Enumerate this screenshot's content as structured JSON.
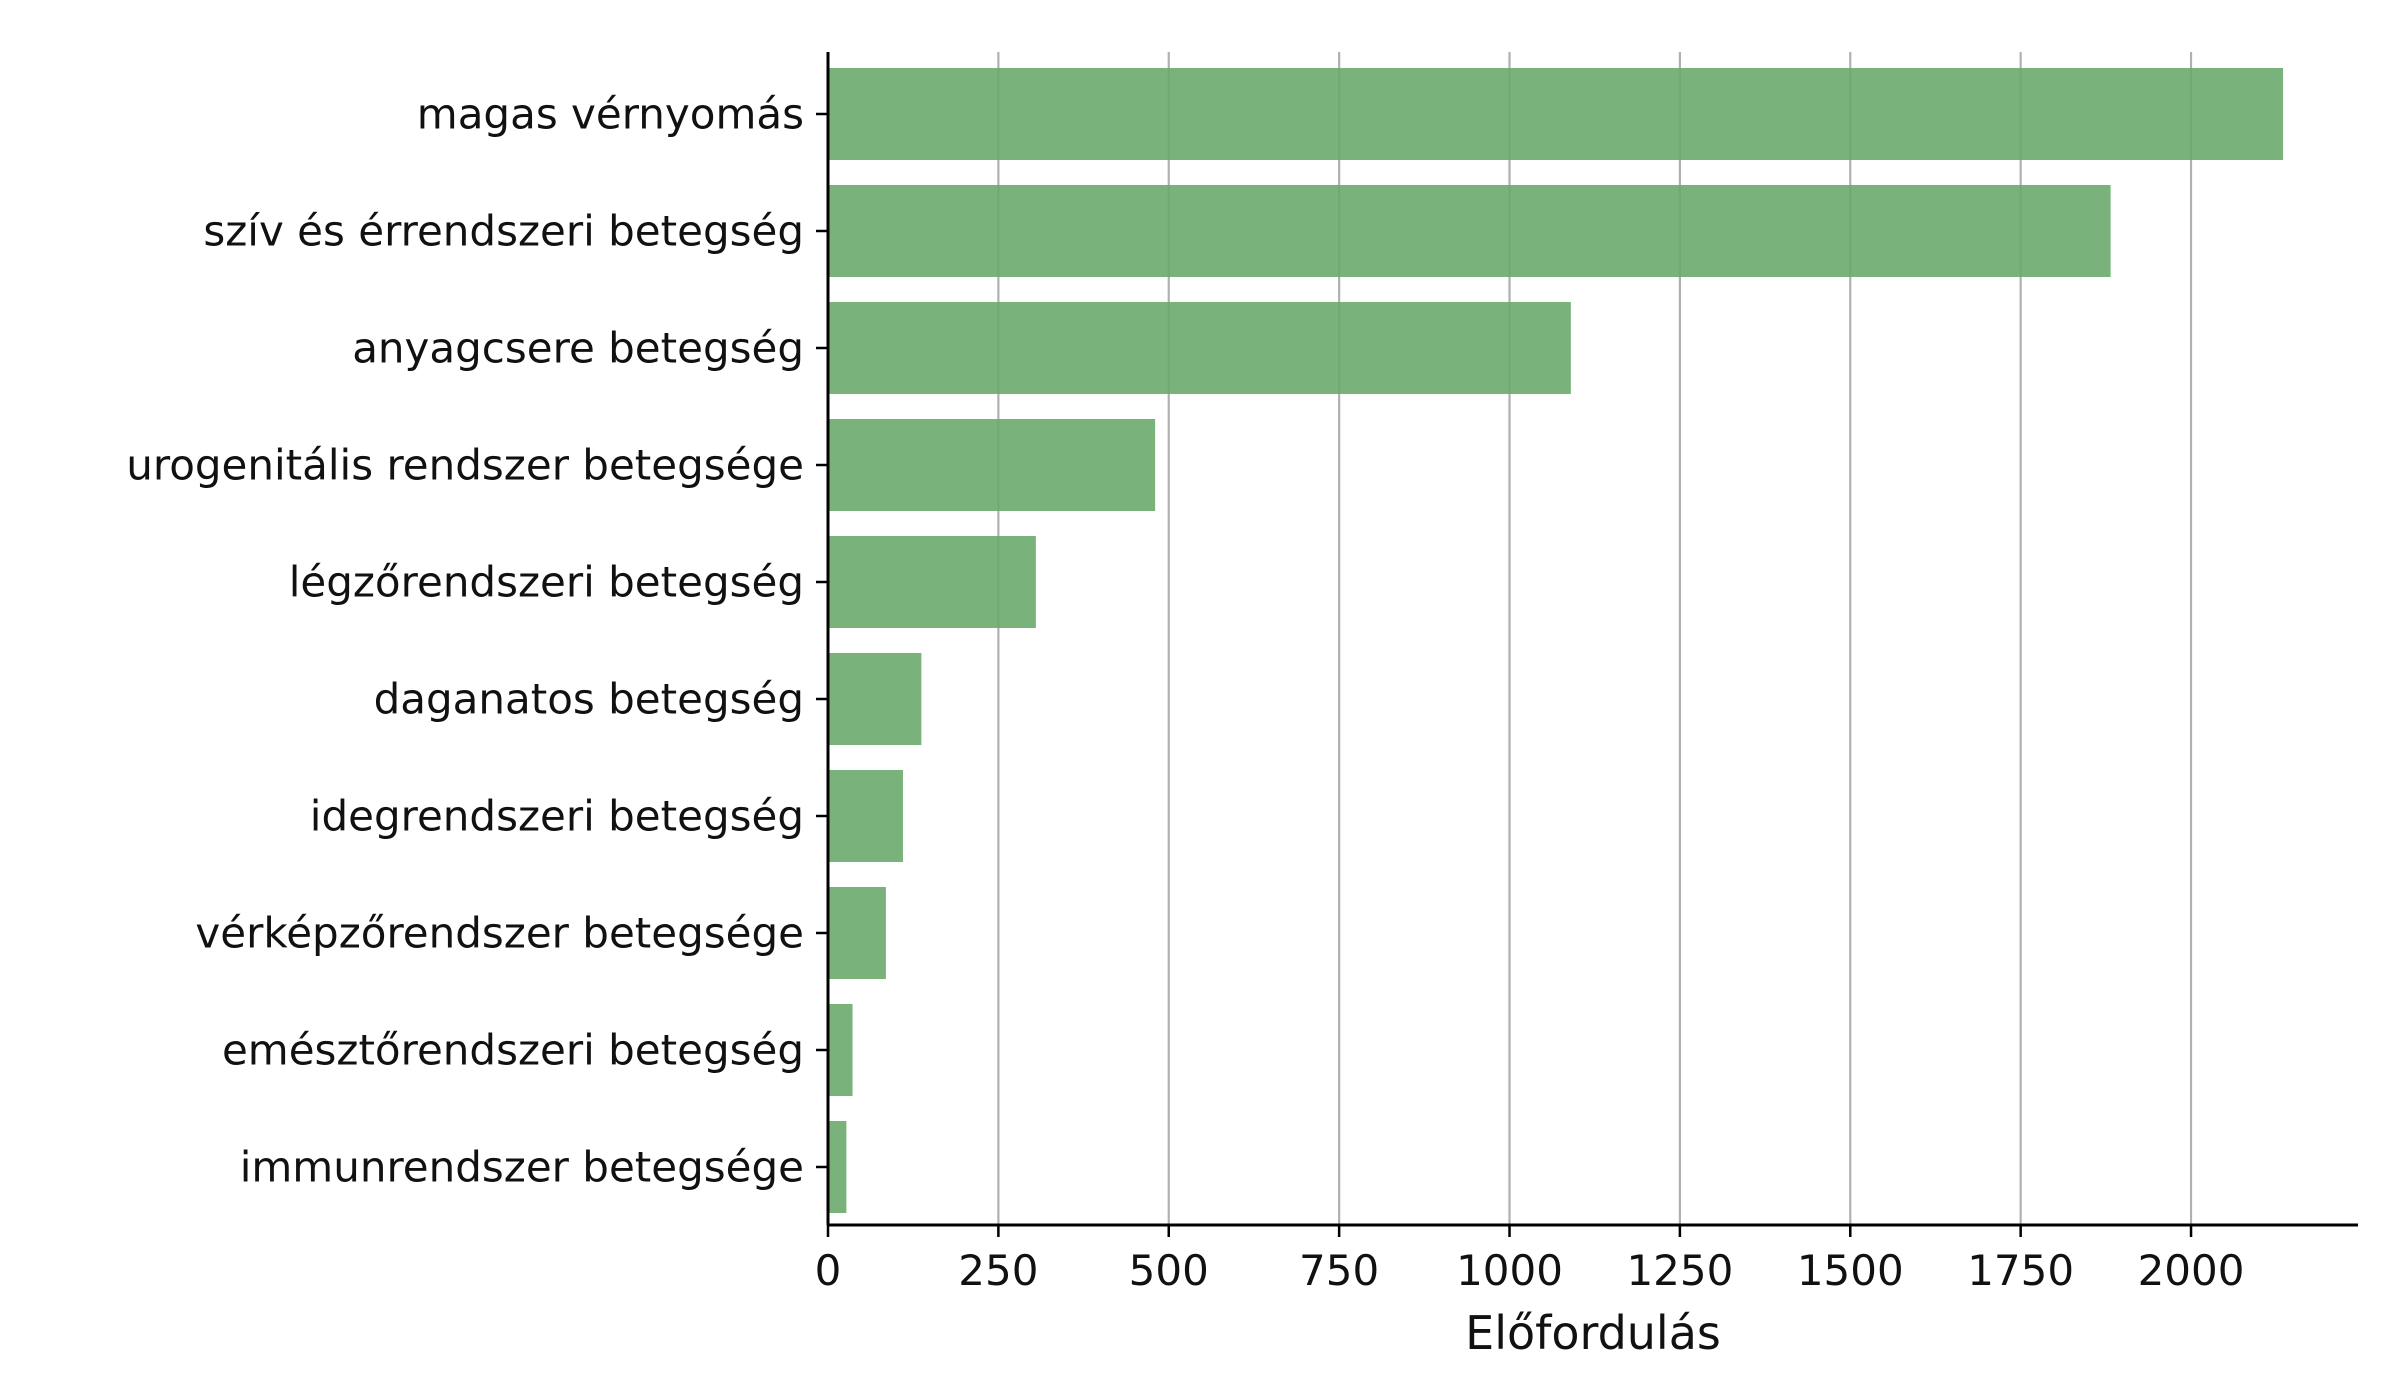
{
  "chart_data": {
    "type": "bar",
    "orientation": "horizontal",
    "title": "",
    "xlabel": "Előfordulás",
    "ylabel": "",
    "categories": [
      "magas vérnyomás",
      "szív és érrendszeri betegség",
      "anyagcsere betegség",
      "urogenitális rendszer betegsége",
      "légzőrendszeri betegség",
      "daganatos betegség",
      "idegrendszeri betegség",
      "vérképzőrendszer betegsége",
      "emésztőrendszeri betegség",
      "immunrendszer betegsége"
    ],
    "values": [
      2135,
      1882,
      1090,
      480,
      305,
      137,
      110,
      85,
      36,
      27
    ],
    "xlim": [
      0,
      2245
    ],
    "xticks": [
      0,
      250,
      500,
      750,
      1000,
      1250,
      1500,
      1750,
      2000
    ],
    "xtick_labels": [
      "0",
      "250",
      "500",
      "750",
      "1000",
      "1250",
      "1500",
      "1750",
      "2000"
    ],
    "grid": "vertical",
    "bar_color": "#6aaa6d",
    "grid_color": "#b0b0b0",
    "axis_color": "#000000"
  }
}
